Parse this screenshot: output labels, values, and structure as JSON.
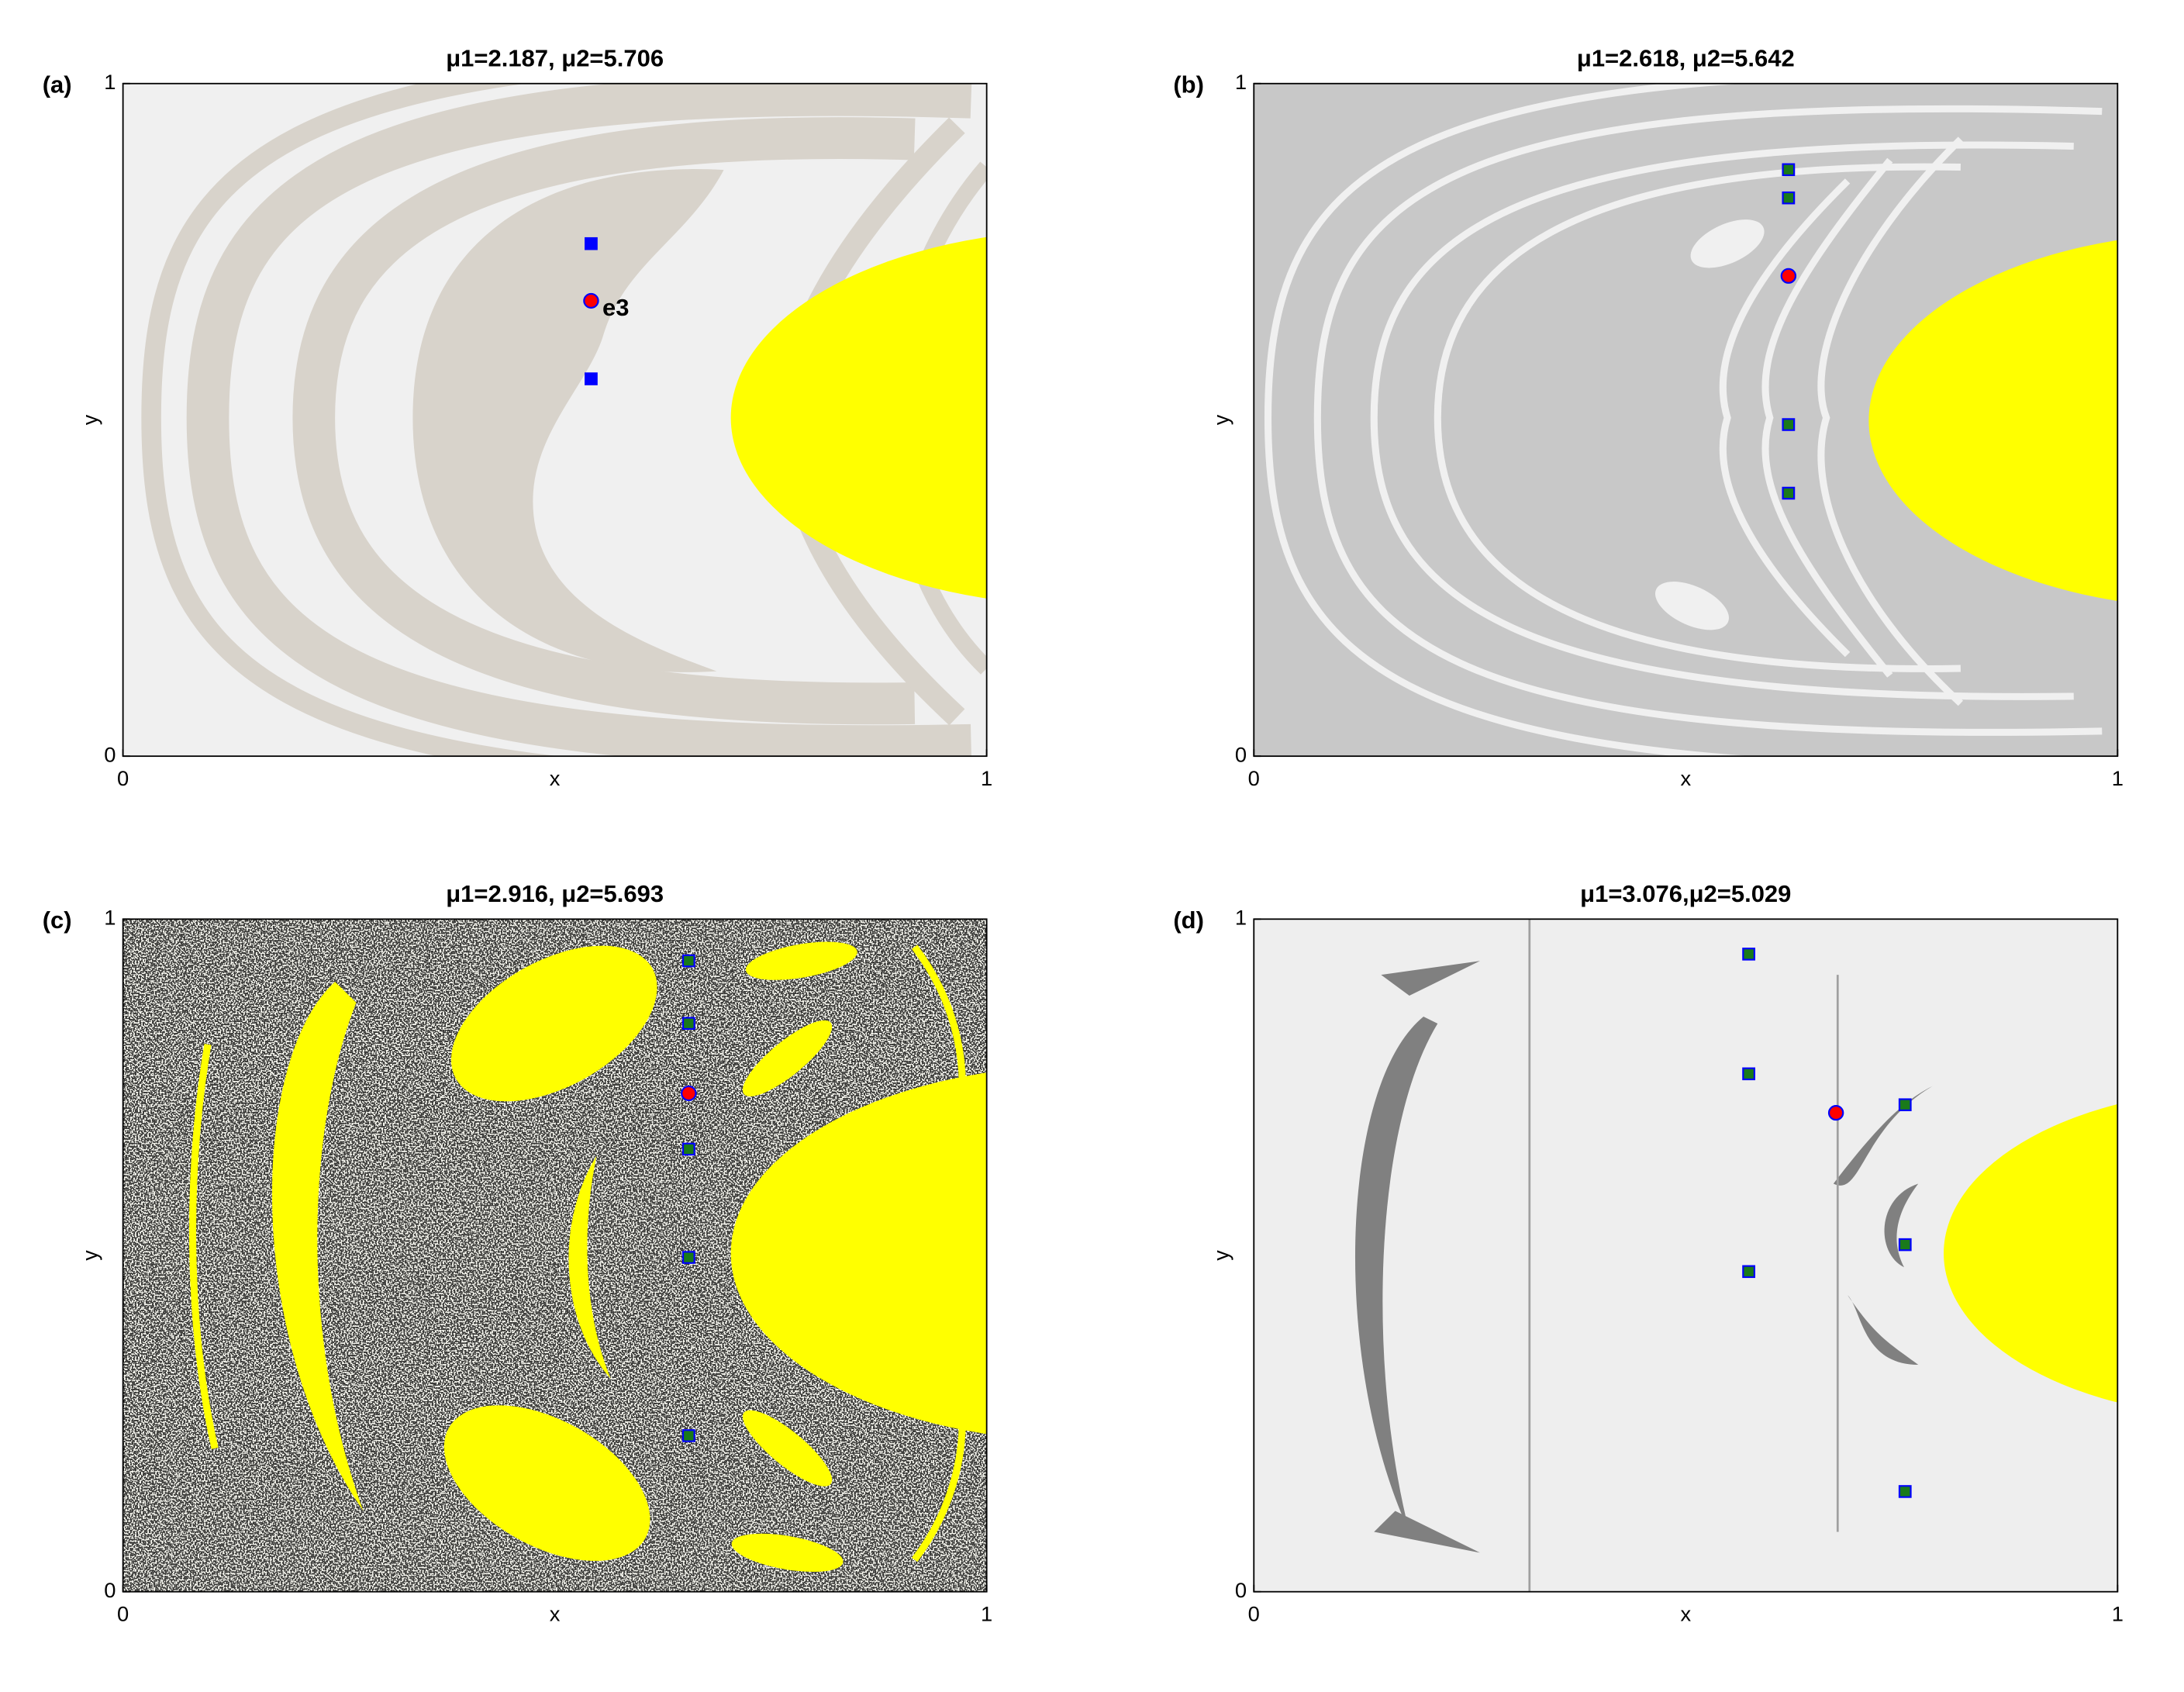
{
  "chart_data": [
    {
      "type": "scatter",
      "panel": "(a)",
      "title": "μ1=2.187, μ2=5.706",
      "x_label": "x",
      "y_label": "y",
      "xlim": [
        0,
        1
      ],
      "ylim": [
        0,
        1
      ],
      "xticks": [
        0,
        1
      ],
      "yticks": [
        0,
        1
      ],
      "annotation": "e3",
      "series": [
        {
          "marker": "square",
          "color": "#0000ff",
          "edge": "#0000ff",
          "x": [
            0.542,
            0.542
          ],
          "values": [
            0.762,
            0.561
          ]
        },
        {
          "marker": "circle",
          "color": "#ff0000",
          "edge": "#0000ff",
          "x": [
            0.542
          ],
          "values": [
            0.677
          ]
        }
      ]
    },
    {
      "type": "scatter",
      "panel": "(b)",
      "title": "μ1=2.618, μ2=5.642",
      "x_label": "x",
      "y_label": "y",
      "xlim": [
        0,
        1
      ],
      "ylim": [
        0,
        1
      ],
      "xticks": [
        0,
        1
      ],
      "yticks": [
        0,
        1
      ],
      "series": [
        {
          "marker": "square",
          "color": "#1a7a1a",
          "edge": "#0000ff",
          "x": [
            0.619,
            0.619,
            0.619,
            0.619
          ],
          "values": [
            0.872,
            0.83,
            0.493,
            0.391
          ]
        },
        {
          "marker": "circle",
          "color": "#ff0000",
          "edge": "#0000ff",
          "x": [
            0.619
          ],
          "values": [
            0.714
          ]
        }
      ]
    },
    {
      "type": "scatter",
      "panel": "(c)",
      "title": "μ1=2.916, μ2=5.693",
      "x_label": "x",
      "y_label": "y",
      "xlim": [
        0,
        1
      ],
      "ylim": [
        0,
        1
      ],
      "xticks": [
        0,
        1
      ],
      "yticks": [
        0,
        1
      ],
      "series": [
        {
          "marker": "square",
          "color": "#1a7a1a",
          "edge": "#0000ff",
          "x": [
            0.655,
            0.655,
            0.655,
            0.655,
            0.655
          ],
          "values": [
            0.938,
            0.845,
            0.658,
            0.497,
            0.232
          ]
        },
        {
          "marker": "circle",
          "color": "#ff0000",
          "edge": "#0000ff",
          "x": [
            0.655
          ],
          "values": [
            0.741
          ]
        }
      ]
    },
    {
      "type": "scatter",
      "panel": "(d)",
      "title": "μ1=3.076,μ2=5.029",
      "x_label": "x",
      "y_label": "y",
      "xlim": [
        0,
        1
      ],
      "ylim": [
        0,
        1
      ],
      "xticks": [
        0,
        1
      ],
      "yticks": [
        0,
        1
      ],
      "series": [
        {
          "marker": "square",
          "color": "#1a7a1a",
          "edge": "#0000ff",
          "x": [
            0.573,
            0.573,
            0.573,
            0.754,
            0.754,
            0.754
          ],
          "values": [
            0.948,
            0.77,
            0.476,
            0.724,
            0.516,
            0.149
          ]
        },
        {
          "marker": "circle",
          "color": "#ff0000",
          "edge": "#0000ff",
          "x": [
            0.674
          ],
          "values": [
            0.712
          ]
        }
      ]
    }
  ]
}
